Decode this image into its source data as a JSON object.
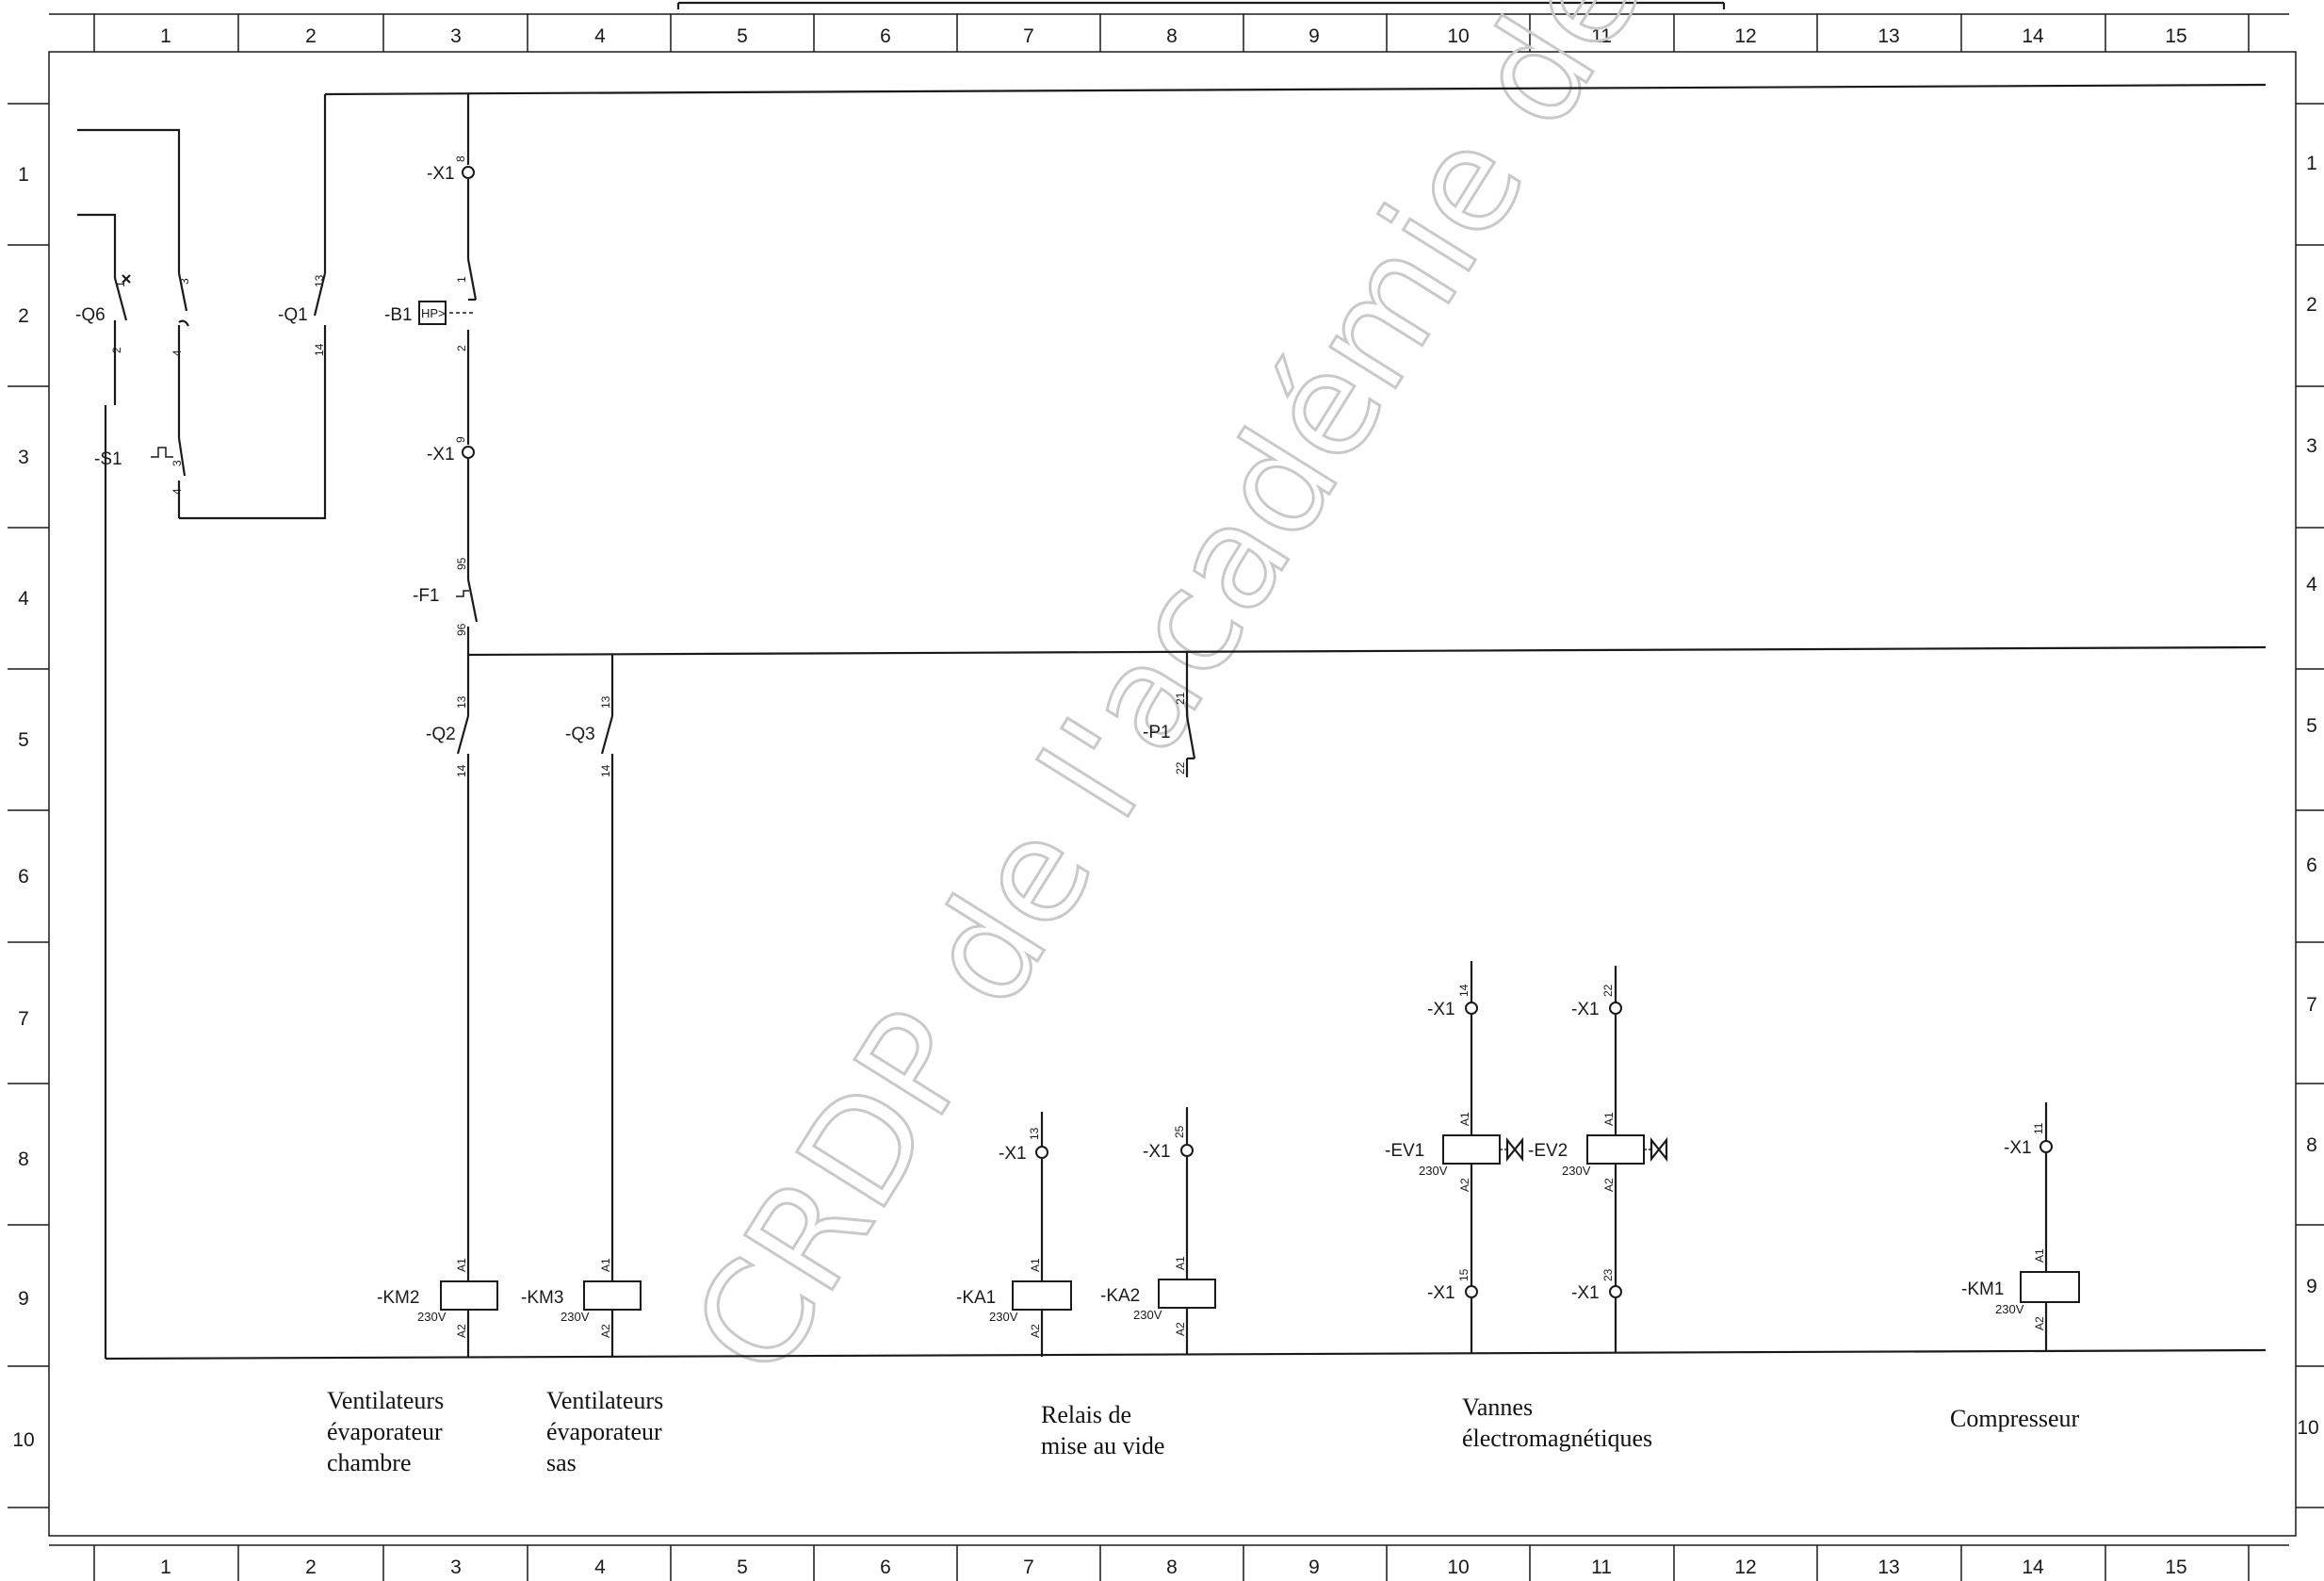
{
  "grid": {
    "columns": [
      "1",
      "2",
      "3",
      "4",
      "5",
      "6",
      "7",
      "8",
      "9",
      "10",
      "11",
      "12",
      "13",
      "14",
      "15"
    ],
    "rows": [
      "1",
      "2",
      "3",
      "4",
      "5",
      "6",
      "7",
      "8",
      "9",
      "10"
    ]
  },
  "watermark": "CRDP de l'académie de Montpellier",
  "components": {
    "q6": "-Q6",
    "q1": "-Q1",
    "s1": "-S1",
    "b1": "-B1",
    "b1_inner": "HP>",
    "x1_a": "-X1",
    "x1_b": "-X1",
    "f1": "-F1",
    "q2": "-Q2",
    "q3": "-Q3",
    "p1": "-P1",
    "x1_c": "-X1",
    "x1_d": "-X1",
    "x1_e": "-X1",
    "x1_f": "-X1",
    "x1_g": "-X1",
    "x1_h": "-X1",
    "x1_i": "-X1",
    "ev1": "-EV1",
    "ev2": "-EV2",
    "km2": "-KM2",
    "km3": "-KM3",
    "ka1": "-KA1",
    "ka2": "-KA2",
    "km1": "-KM1",
    "v230": "230V"
  },
  "pins": {
    "q6_1": "1",
    "q6_2": "2",
    "s1_3a": "3",
    "s1_4a": "4",
    "s1_3b": "3",
    "s1_4b": "4",
    "q1_13": "13",
    "q1_14": "14",
    "x1_8": "8",
    "b1_1": "1",
    "b1_2": "2",
    "x1_9": "9",
    "f1_95": "95",
    "f1_96": "96",
    "q2_13": "13",
    "q2_14": "14",
    "q3_13": "13",
    "q3_14": "14",
    "p1_21": "21",
    "p1_22": "22",
    "x1_13": "13",
    "x1_25": "25",
    "x1_14": "14",
    "x1_22": "22",
    "x1_11": "11",
    "x1_15": "15",
    "x1_23": "23",
    "a1": "A1",
    "a2": "A2"
  },
  "captions": {
    "c1_l1": "Ventilateurs",
    "c1_l2": "évaporateur",
    "c1_l3": "chambre",
    "c2_l1": "Ventilateurs",
    "c2_l2": "évaporateur",
    "c2_l3": "sas",
    "c3_l1": "Relais de",
    "c3_l2": "mise au vide",
    "c4_l1": "Vannes",
    "c4_l2": "électromagnétiques",
    "c5_l1": "Compresseur"
  }
}
